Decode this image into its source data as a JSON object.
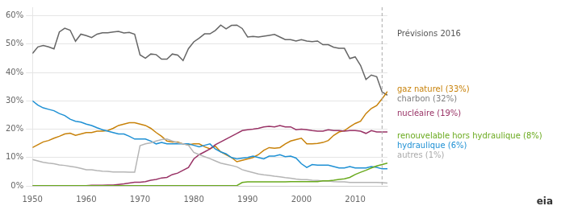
{
  "chart_data": {
    "type": "line",
    "x": [
      1950,
      1951,
      1952,
      1953,
      1954,
      1955,
      1956,
      1957,
      1958,
      1959,
      1960,
      1961,
      1962,
      1963,
      1964,
      1965,
      1966,
      1967,
      1968,
      1969,
      1970,
      1971,
      1972,
      1973,
      1974,
      1975,
      1976,
      1977,
      1978,
      1979,
      1980,
      1981,
      1982,
      1983,
      1984,
      1985,
      1986,
      1987,
      1988,
      1989,
      1990,
      1991,
      1992,
      1993,
      1994,
      1995,
      1996,
      1997,
      1998,
      1999,
      2000,
      2001,
      2002,
      2003,
      2004,
      2005,
      2006,
      2007,
      2008,
      2009,
      2010,
      2011,
      2012,
      2013,
      2014,
      2015,
      2016
    ],
    "series": [
      {
        "color": "#6aaa1e",
        "values": [
          0.001,
          0.001,
          0.001,
          0.001,
          0.001,
          0.001,
          0.001,
          0.001,
          0.001,
          0.001,
          0.001,
          0.001,
          0.001,
          0.001,
          0.001,
          0.001,
          0.001,
          0.001,
          0.001,
          0.001,
          0.001,
          0.001,
          0.001,
          0.001,
          0.001,
          0.001,
          0.001,
          0.001,
          0.001,
          0.001,
          0.001,
          0.001,
          0.001,
          0.001,
          0.001,
          0.001,
          0.001,
          0.001,
          0.001,
          0.012,
          0.014,
          0.014,
          0.014,
          0.014,
          0.014,
          0.014,
          0.014,
          0.014,
          0.015,
          0.015,
          0.015,
          0.015,
          0.015,
          0.015,
          0.018,
          0.018,
          0.02,
          0.023,
          0.025,
          0.03,
          0.04,
          0.048,
          0.055,
          0.063,
          0.07,
          0.075,
          0.08
        ]
      },
      {
        "color": "#b5b5b5",
        "values": [
          0.093,
          0.088,
          0.083,
          0.08,
          0.078,
          0.074,
          0.072,
          0.069,
          0.066,
          0.062,
          0.057,
          0.057,
          0.054,
          0.052,
          0.051,
          0.049,
          0.049,
          0.049,
          0.048,
          0.048,
          0.142,
          0.148,
          0.152,
          0.158,
          0.163,
          0.165,
          0.158,
          0.152,
          0.148,
          0.143,
          0.118,
          0.11,
          0.103,
          0.096,
          0.088,
          0.08,
          0.076,
          0.072,
          0.067,
          0.057,
          0.052,
          0.047,
          0.042,
          0.039,
          0.037,
          0.034,
          0.032,
          0.029,
          0.027,
          0.024,
          0.022,
          0.022,
          0.02,
          0.019,
          0.017,
          0.017,
          0.015,
          0.014,
          0.014,
          0.012,
          0.012,
          0.012,
          0.012,
          0.012,
          0.012,
          0.011,
          0.01
        ]
      },
      {
        "color": "#1e90d4",
        "values": [
          0.3,
          0.285,
          0.275,
          0.27,
          0.265,
          0.255,
          0.248,
          0.235,
          0.228,
          0.225,
          0.218,
          0.213,
          0.205,
          0.198,
          0.193,
          0.188,
          0.183,
          0.183,
          0.175,
          0.165,
          0.165,
          0.165,
          0.158,
          0.148,
          0.153,
          0.148,
          0.148,
          0.148,
          0.148,
          0.148,
          0.143,
          0.138,
          0.143,
          0.148,
          0.13,
          0.12,
          0.113,
          0.1,
          0.095,
          0.098,
          0.1,
          0.105,
          0.1,
          0.095,
          0.105,
          0.105,
          0.11,
          0.103,
          0.105,
          0.098,
          0.078,
          0.065,
          0.075,
          0.073,
          0.073,
          0.073,
          0.068,
          0.063,
          0.063,
          0.068,
          0.063,
          0.063,
          0.063,
          0.068,
          0.065,
          0.06,
          0.06
        ]
      },
      {
        "color": "#993366",
        "values": [
          0.0,
          0.0,
          0.0,
          0.0,
          0.0,
          0.0,
          0.001,
          0.001,
          0.001,
          0.001,
          0.001,
          0.002,
          0.002,
          0.002,
          0.003,
          0.003,
          0.005,
          0.007,
          0.01,
          0.013,
          0.013,
          0.015,
          0.02,
          0.023,
          0.028,
          0.03,
          0.04,
          0.045,
          0.055,
          0.065,
          0.095,
          0.11,
          0.12,
          0.13,
          0.145,
          0.155,
          0.165,
          0.175,
          0.185,
          0.195,
          0.198,
          0.2,
          0.203,
          0.208,
          0.21,
          0.208,
          0.213,
          0.208,
          0.208,
          0.198,
          0.2,
          0.198,
          0.195,
          0.193,
          0.193,
          0.198,
          0.195,
          0.195,
          0.193,
          0.195,
          0.195,
          0.193,
          0.185,
          0.195,
          0.19,
          0.19,
          0.19
        ]
      },
      {
        "color": "#c8820a",
        "values": [
          0.135,
          0.145,
          0.155,
          0.16,
          0.168,
          0.175,
          0.183,
          0.186,
          0.178,
          0.183,
          0.188,
          0.188,
          0.193,
          0.193,
          0.195,
          0.203,
          0.213,
          0.218,
          0.223,
          0.223,
          0.218,
          0.213,
          0.203,
          0.188,
          0.175,
          0.158,
          0.155,
          0.155,
          0.148,
          0.145,
          0.148,
          0.148,
          0.138,
          0.131,
          0.14,
          0.12,
          0.11,
          0.1,
          0.085,
          0.09,
          0.095,
          0.1,
          0.11,
          0.125,
          0.135,
          0.133,
          0.135,
          0.148,
          0.158,
          0.163,
          0.168,
          0.148,
          0.148,
          0.15,
          0.153,
          0.16,
          0.178,
          0.19,
          0.195,
          0.208,
          0.22,
          0.228,
          0.255,
          0.273,
          0.283,
          0.307,
          0.333
        ]
      },
      {
        "color": "#666666",
        "values": [
          0.467,
          0.49,
          0.495,
          0.49,
          0.483,
          0.543,
          0.556,
          0.549,
          0.51,
          0.535,
          0.53,
          0.523,
          0.535,
          0.54,
          0.54,
          0.543,
          0.545,
          0.539,
          0.541,
          0.535,
          0.462,
          0.45,
          0.465,
          0.463,
          0.447,
          0.447,
          0.465,
          0.461,
          0.442,
          0.484,
          0.508,
          0.521,
          0.536,
          0.536,
          0.548,
          0.567,
          0.554,
          0.566,
          0.567,
          0.555,
          0.525,
          0.527,
          0.525,
          0.528,
          0.531,
          0.534,
          0.525,
          0.516,
          0.516,
          0.511,
          0.516,
          0.511,
          0.509,
          0.511,
          0.498,
          0.498,
          0.489,
          0.485,
          0.485,
          0.449,
          0.455,
          0.425,
          0.375,
          0.391,
          0.385,
          0.331,
          0.32
        ]
      }
    ],
    "xlim": [
      1950,
      2016
    ],
    "xticks": [
      1950,
      1960,
      1970,
      1980,
      1990,
      2000,
      2010
    ],
    "ylim": [
      0,
      0.63
    ],
    "yticks": [
      {
        "value": 0.0,
        "label": "0%"
      },
      {
        "value": 0.1,
        "label": "10%"
      },
      {
        "value": 0.2,
        "label": "20%"
      },
      {
        "value": 0.3,
        "label": "30%"
      },
      {
        "value": 0.4,
        "label": "40%"
      },
      {
        "value": 0.5,
        "label": "50%"
      },
      {
        "value": 0.6,
        "label": "60%"
      }
    ],
    "grid": "y",
    "annotations": [
      {
        "x": 2015,
        "line_style": "dashed",
        "color": "#aaaaaa"
      },
      {
        "text": "Prévisions 2016",
        "y": 0.535,
        "color": "#555555"
      },
      {
        "text": "gaz naturel (33%)",
        "y": 0.34,
        "color": "#c8820a"
      },
      {
        "text": "charbon (32%)",
        "y": 0.315,
        "color": "#808080"
      },
      {
        "text": "nucléaire (19%)",
        "y": 0.255,
        "color": "#993366"
      },
      {
        "text": "renouvelable hors hydraulique (8%)",
        "y": 0.175,
        "color": "#6aaa1e"
      },
      {
        "text": "hydraulique (6%)",
        "y": 0.152,
        "color": "#1e90d4"
      },
      {
        "text": "autres (1%)",
        "y": 0.13,
        "color": "#aaaaaa"
      },
      {
        "text": "eia",
        "color": "#333333"
      }
    ]
  }
}
